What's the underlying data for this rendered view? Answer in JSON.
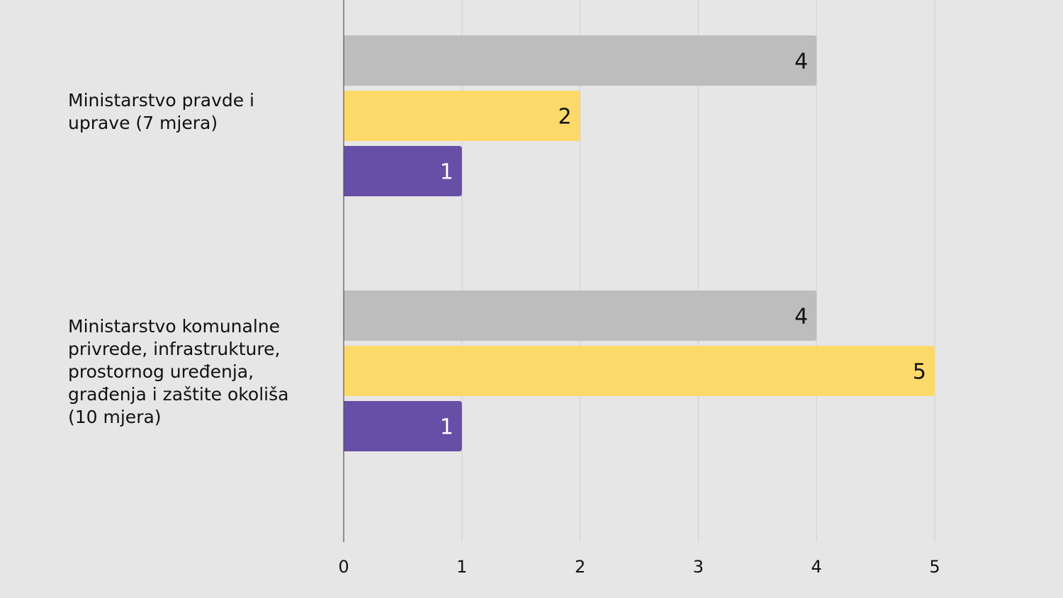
{
  "chart_data": {
    "type": "bar",
    "orientation": "horizontal",
    "categories": [
      "Ministarstvo pravde i\nuprave (7 mjera)",
      "Ministarstvo komunalne\nprivrede, infrastrukture,\nprostornog uređenja,\ngrađenja i zaštite okoliša\n(10 mjera)"
    ],
    "series": [
      {
        "color": "#bdbdbd",
        "label_color": "#111111",
        "values": [
          4,
          4
        ]
      },
      {
        "color": "#fdd96a",
        "label_color": "#111111",
        "values": [
          2,
          5
        ]
      },
      {
        "color": "#674ea7",
        "label_color": "#ffffff",
        "values": [
          1,
          1
        ]
      }
    ],
    "xlim": [
      0,
      5
    ],
    "xticks": [
      "0",
      "1",
      "2",
      "3",
      "4",
      "5"
    ],
    "grid": true,
    "data_labels": true,
    "title": "",
    "xlabel": "",
    "ylabel": ""
  }
}
